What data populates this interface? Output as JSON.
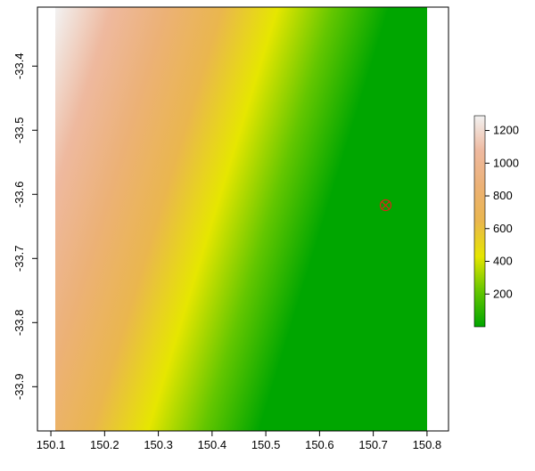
{
  "chart_data": {
    "type": "raster",
    "xlim": [
      150.075,
      150.84
    ],
    "ylim": [
      -33.969,
      -33.308
    ],
    "xticks": [
      150.1,
      150.2,
      150.3,
      150.4,
      150.5,
      150.6,
      150.7,
      150.8
    ],
    "yticks": [
      -33.4,
      -33.5,
      -33.6,
      -33.7,
      -33.8,
      -33.9
    ],
    "zlim": [
      0,
      1290
    ],
    "zticks": [
      200,
      400,
      600,
      800,
      1000,
      1200
    ],
    "colors": [
      "#00A600",
      "#63C600",
      "#E6E600",
      "#EAB64E",
      "#ECB176",
      "#EEB99F",
      "#F2F2F2"
    ],
    "marker": {
      "x": 150.723,
      "y": -33.617,
      "color": "#e0221a"
    }
  }
}
